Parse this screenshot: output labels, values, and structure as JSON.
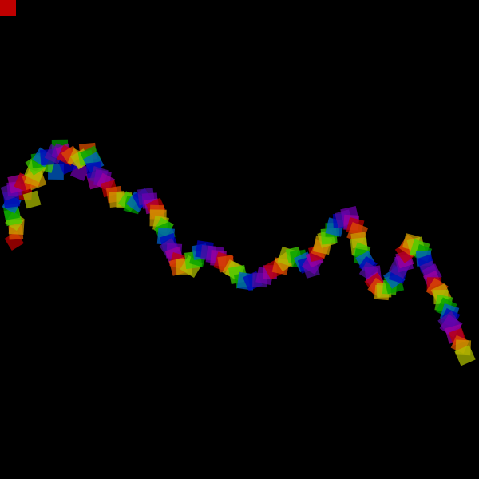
{
  "scene": {
    "background": "#000000",
    "corner_square_color": "#c00000",
    "tile_opacity": 0.72,
    "palette": [
      "#c00000",
      "#e05000",
      "#d0a000",
      "#b0c000",
      "#40d000",
      "#00a000",
      "#0060d0",
      "#0000c0",
      "#5010a0",
      "#7000b0",
      "#a000a0"
    ]
  }
}
